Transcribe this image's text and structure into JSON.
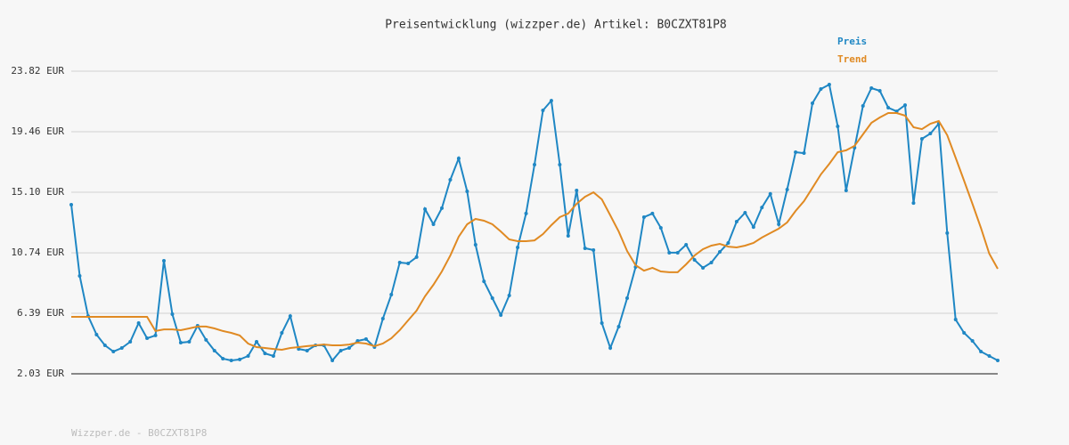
{
  "chart_data": {
    "type": "line",
    "title": "Preisentwicklung (wizzper.de) Artikel: B0CZXT81P8",
    "footer": "Wizzper.de - B0CZXT81P8",
    "legend": "top-right",
    "grid": true,
    "ylim": [
      2.03,
      23.82
    ],
    "yticks": [
      {
        "value": 2.03,
        "label": "2.03 EUR"
      },
      {
        "value": 6.39,
        "label": "6.39 EUR"
      },
      {
        "value": 10.74,
        "label": "10.74 EUR"
      },
      {
        "value": 15.1,
        "label": "15.10 EUR"
      },
      {
        "value": 19.46,
        "label": "19.46 EUR"
      },
      {
        "value": 23.82,
        "label": "23.82 EUR"
      }
    ],
    "series": [
      {
        "name": "Preis",
        "color": "#1f87c4",
        "markers": true,
        "values": [
          14.21,
          9.08,
          6.19,
          4.85,
          4.08,
          3.63,
          3.89,
          4.34,
          5.68,
          4.59,
          4.79,
          10.17,
          6.32,
          4.27,
          4.34,
          5.49,
          4.47,
          3.7,
          3.12,
          2.99,
          3.06,
          3.31,
          4.34,
          3.5,
          3.31,
          4.98,
          6.19,
          3.82,
          3.7,
          4.08,
          4.08,
          2.99,
          3.7,
          3.89,
          4.4,
          4.53,
          3.95,
          6.0,
          7.73,
          10.04,
          9.98,
          10.43,
          13.89,
          12.8,
          13.96,
          16.0,
          17.54,
          15.17,
          11.32,
          8.69,
          7.48,
          6.26,
          7.67,
          11.13,
          13.57,
          17.09,
          21.0,
          21.7,
          17.09,
          11.96,
          15.23,
          11.07,
          10.94,
          5.68,
          3.89,
          5.43,
          7.48,
          9.72,
          13.31,
          13.57,
          12.54,
          10.75,
          10.75,
          11.32,
          10.23,
          9.66,
          10.04,
          10.81,
          11.45,
          12.99,
          13.63,
          12.6,
          14.01,
          14.98,
          12.8,
          15.3,
          17.99,
          17.92,
          21.51,
          22.54,
          22.86,
          19.85,
          15.23,
          18.31,
          21.32,
          22.6,
          22.41,
          21.19,
          20.93,
          21.38,
          14.33,
          18.95,
          19.33,
          20.04,
          12.16,
          5.94,
          4.98,
          4.4,
          3.63,
          3.31,
          2.99
        ]
      },
      {
        "name": "Trend",
        "color": "#e08a23",
        "markers": false,
        "values": [
          6.13,
          6.13,
          6.13,
          6.13,
          6.13,
          6.13,
          6.13,
          6.13,
          6.13,
          6.13,
          5.11,
          5.23,
          5.23,
          5.17,
          5.3,
          5.43,
          5.43,
          5.3,
          5.11,
          4.98,
          4.79,
          4.21,
          3.95,
          3.89,
          3.82,
          3.76,
          3.89,
          3.95,
          4.02,
          4.08,
          4.14,
          4.08,
          4.08,
          4.14,
          4.27,
          4.21,
          4.02,
          4.21,
          4.59,
          5.17,
          5.88,
          6.58,
          7.61,
          8.44,
          9.4,
          10.55,
          11.9,
          12.8,
          13.18,
          13.05,
          12.8,
          12.28,
          11.71,
          11.58,
          11.58,
          11.64,
          12.09,
          12.73,
          13.31,
          13.57,
          14.27,
          14.78,
          15.1,
          14.59,
          13.44,
          12.28,
          10.87,
          9.85,
          9.46,
          9.66,
          9.4,
          9.34,
          9.34,
          9.91,
          10.55,
          11.0,
          11.26,
          11.39,
          11.19,
          11.13,
          11.26,
          11.45,
          11.84,
          12.16,
          12.48,
          12.93,
          13.76,
          14.46,
          15.42,
          16.39,
          17.15,
          17.99,
          18.12,
          18.44,
          19.27,
          20.1,
          20.49,
          20.81,
          20.81,
          20.62,
          19.78,
          19.65,
          20.04,
          20.23,
          19.21,
          17.6,
          15.94,
          14.27,
          12.54,
          10.68,
          9.59
        ]
      }
    ]
  }
}
